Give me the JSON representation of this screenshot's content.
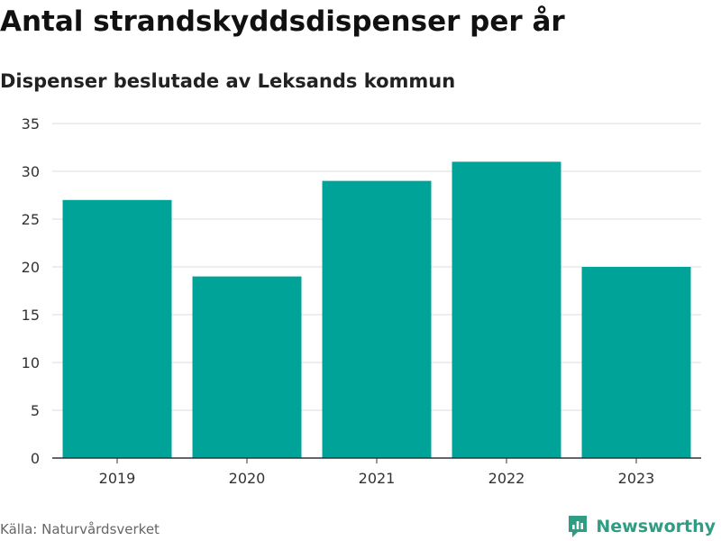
{
  "title": "Antal strandskyddsdispenser per år",
  "subtitle": "Dispenser beslutade av Leksands kommun",
  "source": "Källa: Naturvårdsverket",
  "brand": {
    "name": "Newsworthy",
    "icon": "newsworthy-logo-icon",
    "color": "#2f9c84"
  },
  "colors": {
    "bar": "#00a398",
    "grid": "#dddddd",
    "axis": "#333333"
  },
  "chart_data": {
    "type": "bar",
    "title": "Antal strandskyddsdispenser per år",
    "subtitle": "Dispenser beslutade av Leksands kommun",
    "categories": [
      "2019",
      "2020",
      "2021",
      "2022",
      "2023"
    ],
    "values": [
      27,
      19,
      29,
      31,
      20
    ],
    "xlabel": "",
    "ylabel": "",
    "ylim": [
      0,
      35
    ],
    "yticks": [
      0,
      5,
      10,
      15,
      20,
      25,
      30,
      35
    ],
    "grid": true,
    "legend": "none"
  }
}
